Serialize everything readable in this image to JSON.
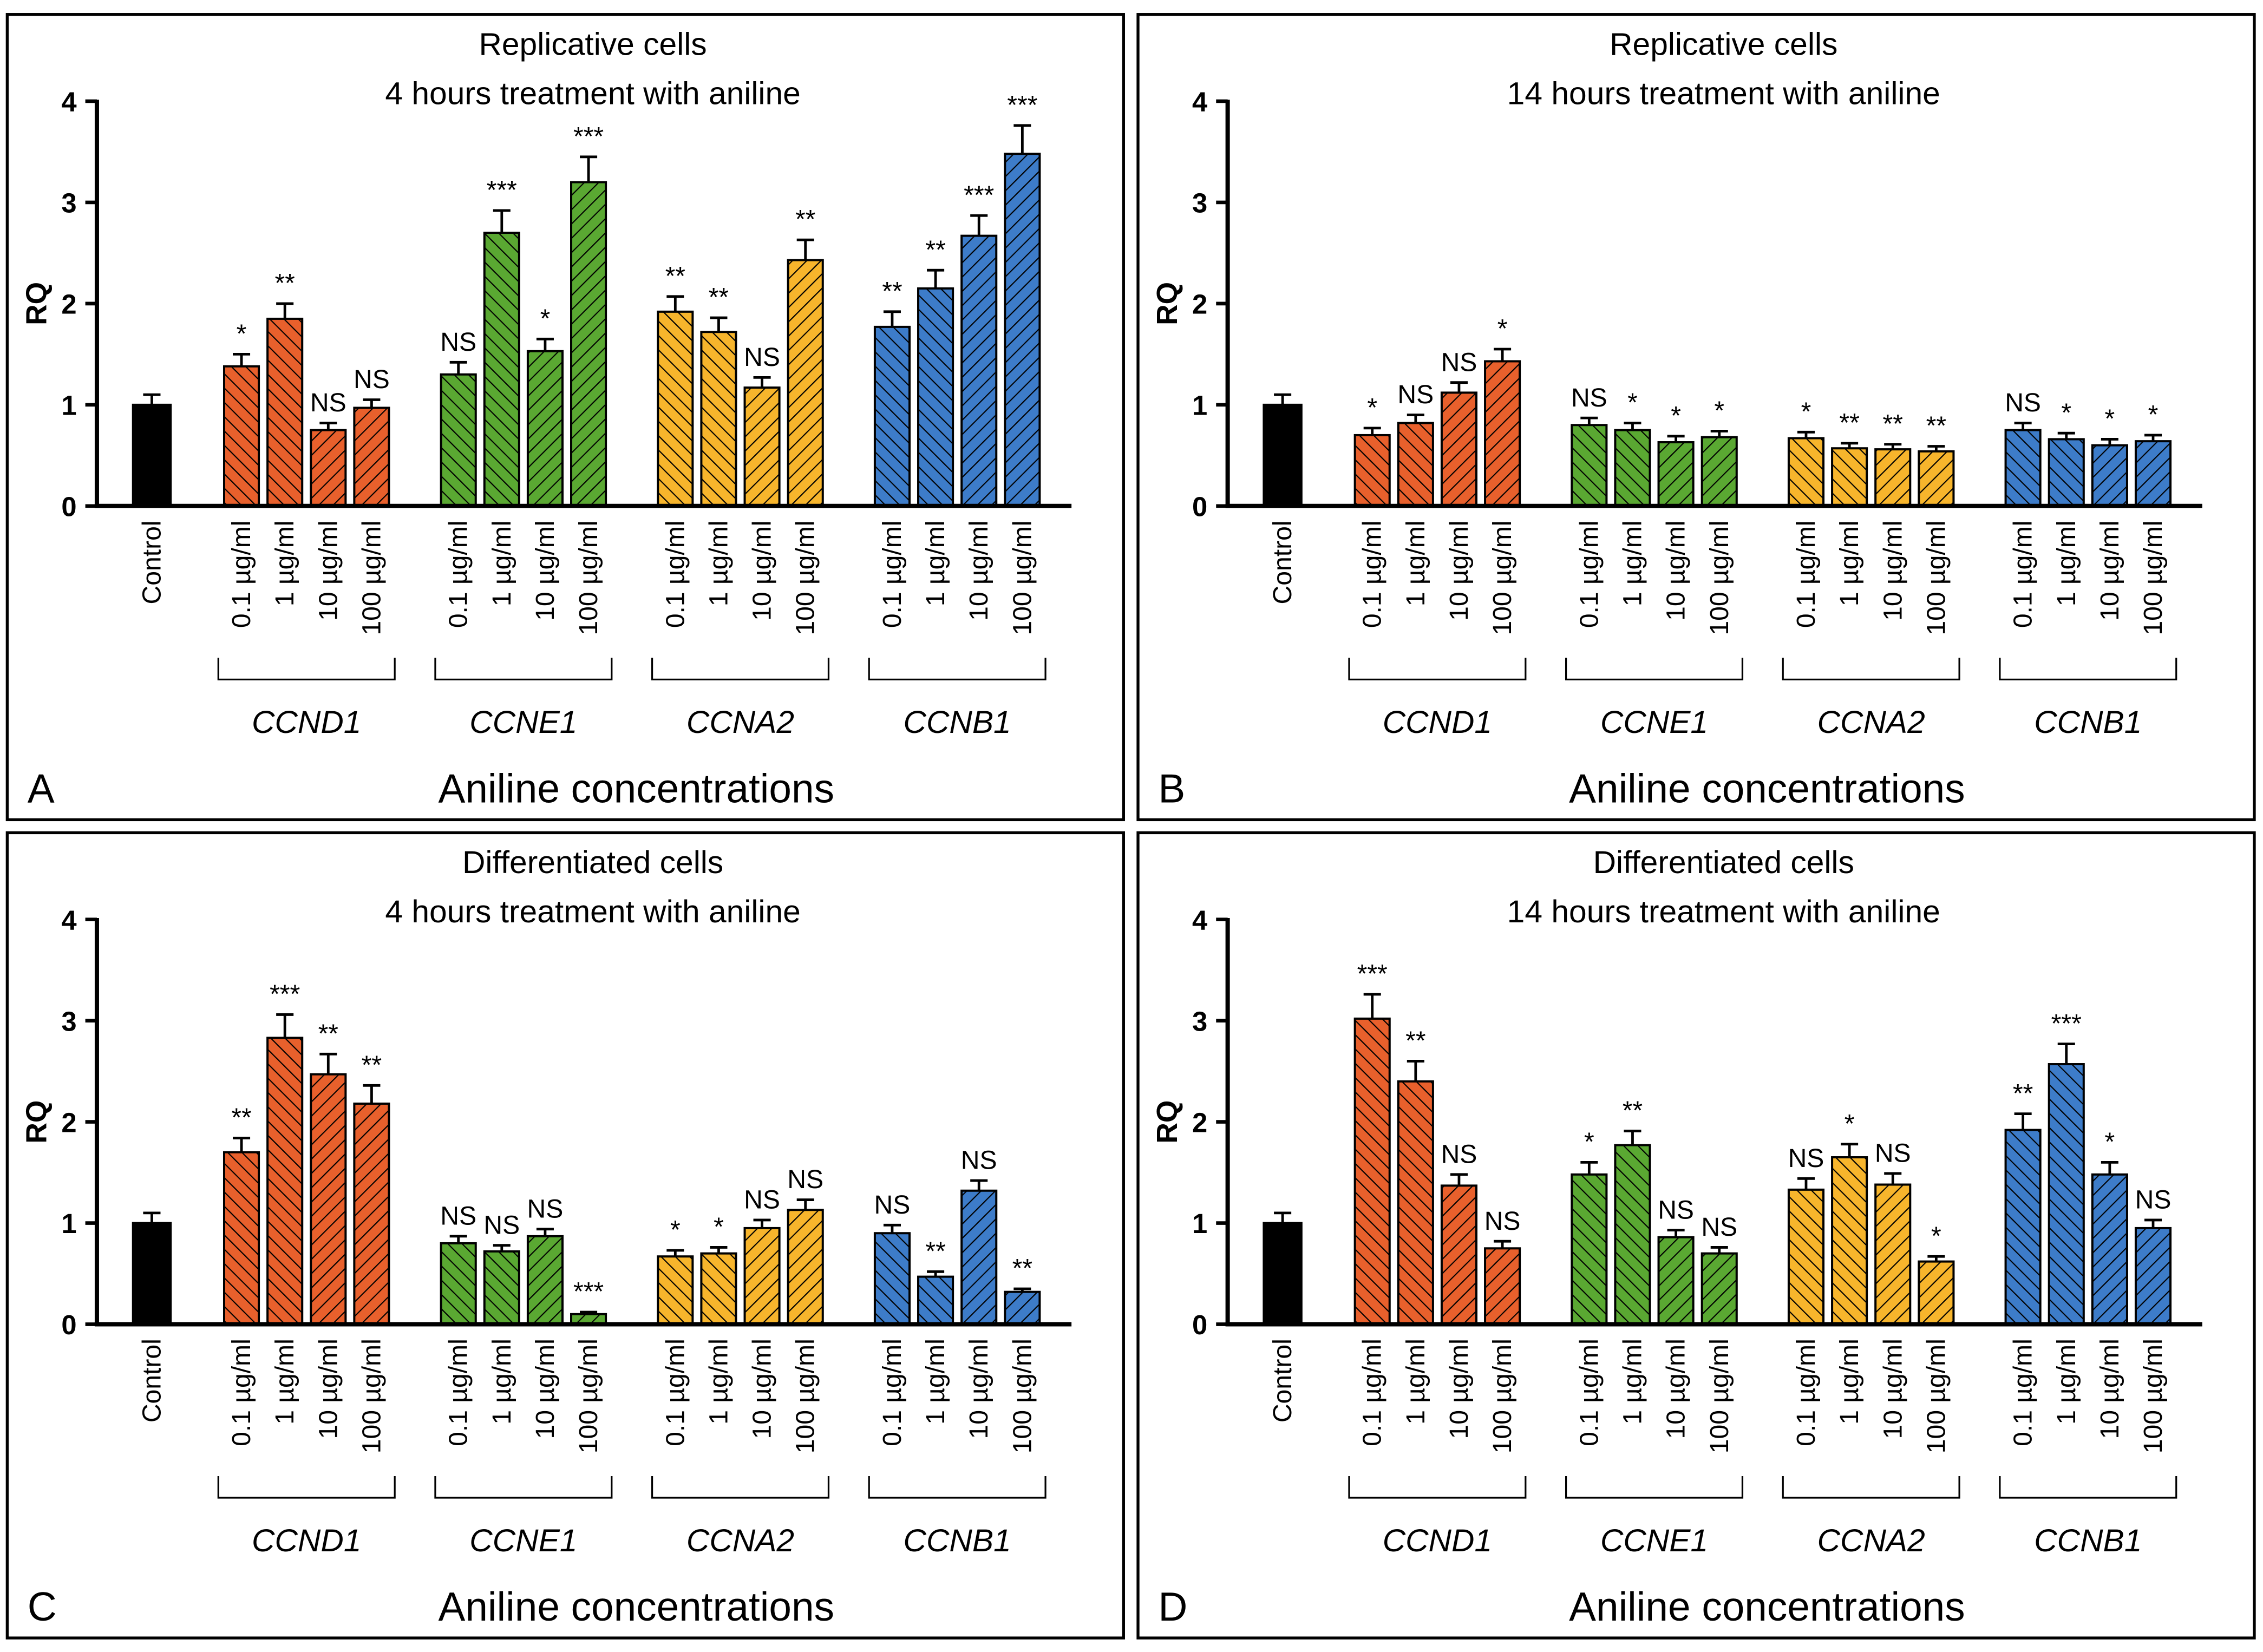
{
  "chart_data": [
    {
      "type": "bar",
      "panel": "A",
      "title": [
        "Replicative cells",
        "4 hours treatment with aniline"
      ],
      "ylabel": "RQ",
      "xlabel": "Aniline concentrations",
      "ylim": [
        0,
        4
      ],
      "yticks": [
        0,
        1,
        2,
        3,
        4
      ],
      "categories": [
        "0.1 µg/ml",
        "1 µg/ml",
        "10 µg/ml",
        "100 µg/ml"
      ],
      "control": {
        "label": "Control",
        "color": "#000000",
        "value": 1.0,
        "error": 0.1
      },
      "series": [
        {
          "name": "CCND1",
          "color": "#e8602c",
          "values": [
            1.38,
            1.85,
            0.75,
            0.97
          ],
          "errors": [
            0.12,
            0.15,
            0.07,
            0.08
          ],
          "significance": [
            "*",
            "**",
            "NS",
            "NS"
          ]
        },
        {
          "name": "CCNE1",
          "color": "#5aa832",
          "values": [
            1.3,
            2.7,
            1.53,
            3.2
          ],
          "errors": [
            0.12,
            0.22,
            0.12,
            0.25
          ],
          "significance": [
            "NS",
            "***",
            "*",
            "***"
          ]
        },
        {
          "name": "CCNA2",
          "color": "#f7b52c",
          "values": [
            1.92,
            1.72,
            1.17,
            2.43
          ],
          "errors": [
            0.15,
            0.14,
            0.1,
            0.2
          ],
          "significance": [
            "**",
            "**",
            "NS",
            "**"
          ]
        },
        {
          "name": "CCNB1",
          "color": "#3d7cc9",
          "values": [
            1.77,
            2.15,
            2.67,
            3.48
          ],
          "errors": [
            0.15,
            0.18,
            0.2,
            0.28
          ],
          "significance": [
            "**",
            "**",
            "***",
            "***"
          ]
        }
      ]
    },
    {
      "type": "bar",
      "panel": "B",
      "title": [
        "Replicative cells",
        "14 hours treatment with aniline"
      ],
      "ylabel": "RQ",
      "xlabel": "Aniline concentrations",
      "ylim": [
        0,
        4
      ],
      "yticks": [
        0,
        1,
        2,
        3,
        4
      ],
      "categories": [
        "0.1 µg/ml",
        "1 µg/ml",
        "10 µg/ml",
        "100 µg/ml"
      ],
      "control": {
        "label": "Control",
        "color": "#000000",
        "value": 1.0,
        "error": 0.1
      },
      "series": [
        {
          "name": "CCND1",
          "color": "#e8602c",
          "values": [
            0.7,
            0.82,
            1.12,
            1.43
          ],
          "errors": [
            0.07,
            0.08,
            0.1,
            0.12
          ],
          "significance": [
            "*",
            "NS",
            "NS",
            "*"
          ]
        },
        {
          "name": "CCNE1",
          "color": "#5aa832",
          "values": [
            0.8,
            0.75,
            0.63,
            0.68
          ],
          "errors": [
            0.07,
            0.07,
            0.06,
            0.06
          ],
          "significance": [
            "NS",
            "*",
            "*",
            "*"
          ]
        },
        {
          "name": "CCNA2",
          "color": "#f7b52c",
          "values": [
            0.67,
            0.57,
            0.56,
            0.54
          ],
          "errors": [
            0.06,
            0.05,
            0.05,
            0.05
          ],
          "significance": [
            "*",
            "**",
            "**",
            "**"
          ]
        },
        {
          "name": "CCNB1",
          "color": "#3d7cc9",
          "values": [
            0.75,
            0.66,
            0.6,
            0.64
          ],
          "errors": [
            0.07,
            0.06,
            0.06,
            0.06
          ],
          "significance": [
            "NS",
            "*",
            "*",
            "*"
          ]
        }
      ]
    },
    {
      "type": "bar",
      "panel": "C",
      "title": [
        "Differentiated cells",
        "4 hours treatment with aniline"
      ],
      "ylabel": "RQ",
      "xlabel": "Aniline concentrations",
      "ylim": [
        0,
        4
      ],
      "yticks": [
        0,
        1,
        2,
        3,
        4
      ],
      "categories": [
        "0.1 µg/ml",
        "1 µg/ml",
        "10 µg/ml",
        "100 µg/ml"
      ],
      "control": {
        "label": "Control",
        "color": "#000000",
        "value": 1.0,
        "error": 0.1
      },
      "series": [
        {
          "name": "CCND1",
          "color": "#e8602c",
          "values": [
            1.7,
            2.83,
            2.47,
            2.18
          ],
          "errors": [
            0.14,
            0.23,
            0.2,
            0.18
          ],
          "significance": [
            "**",
            "***",
            "**",
            "**"
          ]
        },
        {
          "name": "CCNE1",
          "color": "#5aa832",
          "values": [
            0.8,
            0.72,
            0.87,
            0.1
          ],
          "errors": [
            0.07,
            0.06,
            0.07,
            0.02
          ],
          "significance": [
            "NS",
            "NS",
            "NS",
            "***"
          ]
        },
        {
          "name": "CCNA2",
          "color": "#f7b52c",
          "values": [
            0.67,
            0.7,
            0.95,
            1.13
          ],
          "errors": [
            0.06,
            0.06,
            0.08,
            0.1
          ],
          "significance": [
            "*",
            "*",
            "NS",
            "NS"
          ]
        },
        {
          "name": "CCNB1",
          "color": "#3d7cc9",
          "values": [
            0.9,
            0.47,
            1.32,
            0.32
          ],
          "errors": [
            0.08,
            0.05,
            0.1,
            0.03
          ],
          "significance": [
            "NS",
            "**",
            "NS",
            "**"
          ]
        }
      ]
    },
    {
      "type": "bar",
      "panel": "D",
      "title": [
        "Differentiated cells",
        "14 hours treatment with aniline"
      ],
      "ylabel": "RQ",
      "xlabel": "Aniline concentrations",
      "ylim": [
        0,
        4
      ],
      "yticks": [
        0,
        1,
        2,
        3,
        4
      ],
      "categories": [
        "0.1 µg/ml",
        "1 µg/ml",
        "10 µg/ml",
        "100 µg/ml"
      ],
      "control": {
        "label": "Control",
        "color": "#000000",
        "value": 1.0,
        "error": 0.1
      },
      "series": [
        {
          "name": "CCND1",
          "color": "#e8602c",
          "values": [
            3.02,
            2.4,
            1.37,
            0.75
          ],
          "errors": [
            0.24,
            0.2,
            0.11,
            0.07
          ],
          "significance": [
            "***",
            "**",
            "NS",
            "NS"
          ]
        },
        {
          "name": "CCNE1",
          "color": "#5aa832",
          "values": [
            1.48,
            1.77,
            0.86,
            0.7
          ],
          "errors": [
            0.12,
            0.14,
            0.07,
            0.06
          ],
          "significance": [
            "*",
            "**",
            "NS",
            "NS"
          ]
        },
        {
          "name": "CCNA2",
          "color": "#f7b52c",
          "values": [
            1.33,
            1.65,
            1.38,
            0.62
          ],
          "errors": [
            0.11,
            0.13,
            0.11,
            0.05
          ],
          "significance": [
            "NS",
            "*",
            "NS",
            "*"
          ]
        },
        {
          "name": "CCNB1",
          "color": "#3d7cc9",
          "values": [
            1.92,
            2.57,
            1.48,
            0.95
          ],
          "errors": [
            0.16,
            0.2,
            0.12,
            0.08
          ],
          "significance": [
            "**",
            "***",
            "*",
            "NS"
          ]
        }
      ]
    }
  ]
}
